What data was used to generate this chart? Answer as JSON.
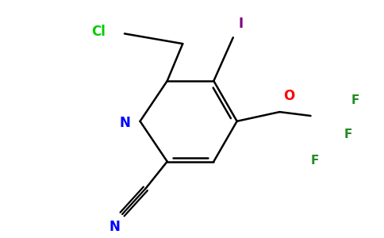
{
  "background_color": "#ffffff",
  "bond_color": "#000000",
  "atom_colors": {
    "N": "#0000ff",
    "O": "#ff0000",
    "Cl": "#00cc00",
    "I": "#800080",
    "F": "#228b22",
    "C": "#000000"
  },
  "lw": 1.8,
  "fs": 11
}
